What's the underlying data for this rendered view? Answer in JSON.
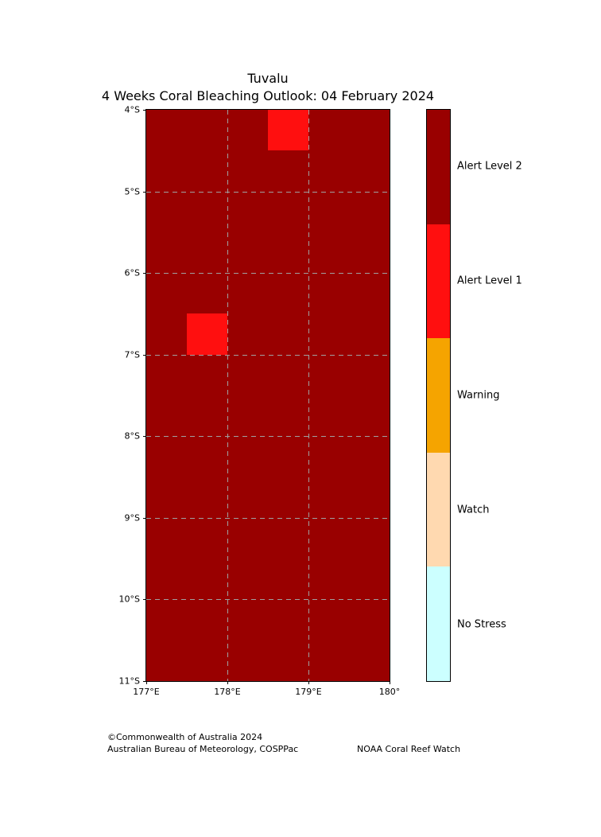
{
  "title": "Tuvalu",
  "subtitle": "4 Weeks Coral Bleaching Outlook: 04 February 2024",
  "footer": {
    "copyright": "©Commonwealth of Australia 2024",
    "organisation": "Australian Bureau of Meteorology, COSPPac",
    "credit": "NOAA Coral Reef Watch"
  },
  "chart_data": {
    "type": "heatmap",
    "title": "Tuvalu",
    "subtitle": "4 Weeks Coral Bleaching Outlook: 04 February 2024",
    "x_axis": {
      "range_deg_east": [
        177,
        180
      ],
      "ticks": [
        {
          "label": "177°E",
          "lon": 177
        },
        {
          "label": "178°E",
          "lon": 178
        },
        {
          "label": "179°E",
          "lon": 179
        },
        {
          "label": "180°",
          "lon": 180
        }
      ]
    },
    "y_axis": {
      "range_deg_south": [
        4,
        11
      ],
      "ticks": [
        {
          "label": "4°S",
          "lat": 4
        },
        {
          "label": "5°S",
          "lat": 5
        },
        {
          "label": "6°S",
          "lat": 6
        },
        {
          "label": "7°S",
          "lat": 7
        },
        {
          "label": "8°S",
          "lat": 8
        },
        {
          "label": "9°S",
          "lat": 9
        },
        {
          "label": "10°S",
          "lat": 10
        },
        {
          "label": "11°S",
          "lat": 11
        }
      ]
    },
    "grid": {
      "on": true,
      "lons": [
        178,
        179
      ],
      "lats": [
        5,
        6,
        7,
        8,
        9,
        10
      ],
      "color": "#a0a0a0"
    },
    "background_level": "Alert Level 2",
    "cells": [
      {
        "level": "Alert Level 1",
        "lon_min": 178.5,
        "lon_max": 179.0,
        "lat_min": 4.0,
        "lat_max": 4.5
      },
      {
        "level": "Alert Level 1",
        "lon_min": 177.5,
        "lon_max": 178.0,
        "lat_min": 6.5,
        "lat_max": 7.0
      }
    ],
    "legend_position": "right",
    "legend": [
      {
        "label": "Alert Level 2",
        "color": "#990000"
      },
      {
        "label": "Alert Level 1",
        "color": "#ff0f0f"
      },
      {
        "label": "Warning",
        "color": "#f5a400"
      },
      {
        "label": "Watch",
        "color": "#ffd9b0"
      },
      {
        "label": "No Stress",
        "color": "#ccffff"
      }
    ]
  }
}
